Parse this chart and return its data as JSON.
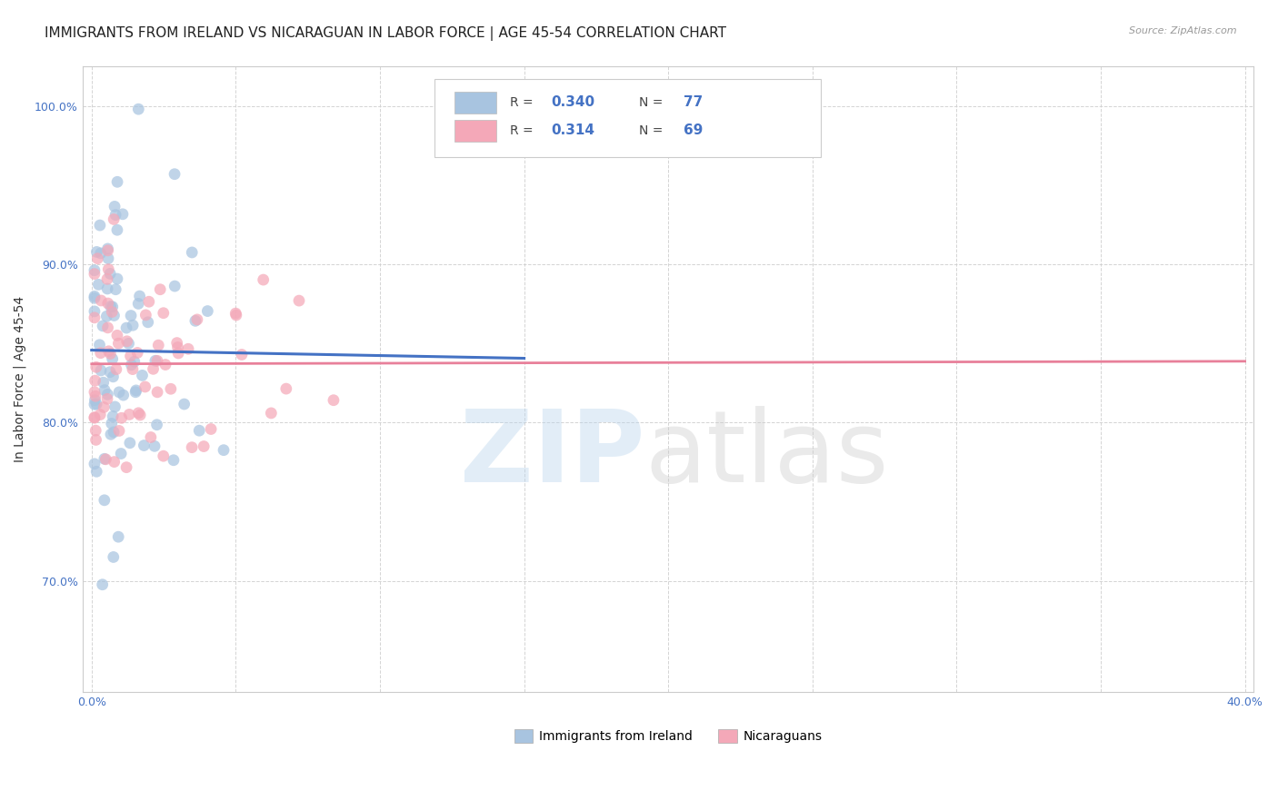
{
  "title": "IMMIGRANTS FROM IRELAND VS NICARAGUAN IN LABOR FORCE | AGE 45-54 CORRELATION CHART",
  "source": "Source: ZipAtlas.com",
  "ylabel": "In Labor Force | Age 45-54",
  "xlim": [
    -0.003,
    0.403
  ],
  "ylim": [
    0.63,
    1.025
  ],
  "xticks": [
    0.0,
    0.05,
    0.1,
    0.15,
    0.2,
    0.25,
    0.3,
    0.35,
    0.4
  ],
  "xticklabels": [
    "0.0%",
    "",
    "",
    "",
    "",
    "",
    "",
    "",
    "40.0%"
  ],
  "yticks": [
    0.7,
    0.8,
    0.9,
    1.0
  ],
  "yticklabels": [
    "70.0%",
    "80.0%",
    "90.0%",
    "100.0%"
  ],
  "ireland_R": 0.34,
  "ireland_N": 77,
  "nicaraguan_R": 0.314,
  "nicaraguan_N": 69,
  "ireland_color": "#a8c4e0",
  "nicaraguan_color": "#f4a8b8",
  "ireland_line_color": "#4472c4",
  "nicaraguan_line_color": "#e8809a",
  "background_color": "#ffffff",
  "grid_color": "#d0d0d0",
  "title_fontsize": 11,
  "axis_label_fontsize": 10,
  "tick_fontsize": 9,
  "tick_color": "#4472c4",
  "legend_ireland": "Immigrants from Ireland",
  "legend_nicaraguan": "Nicaraguans"
}
